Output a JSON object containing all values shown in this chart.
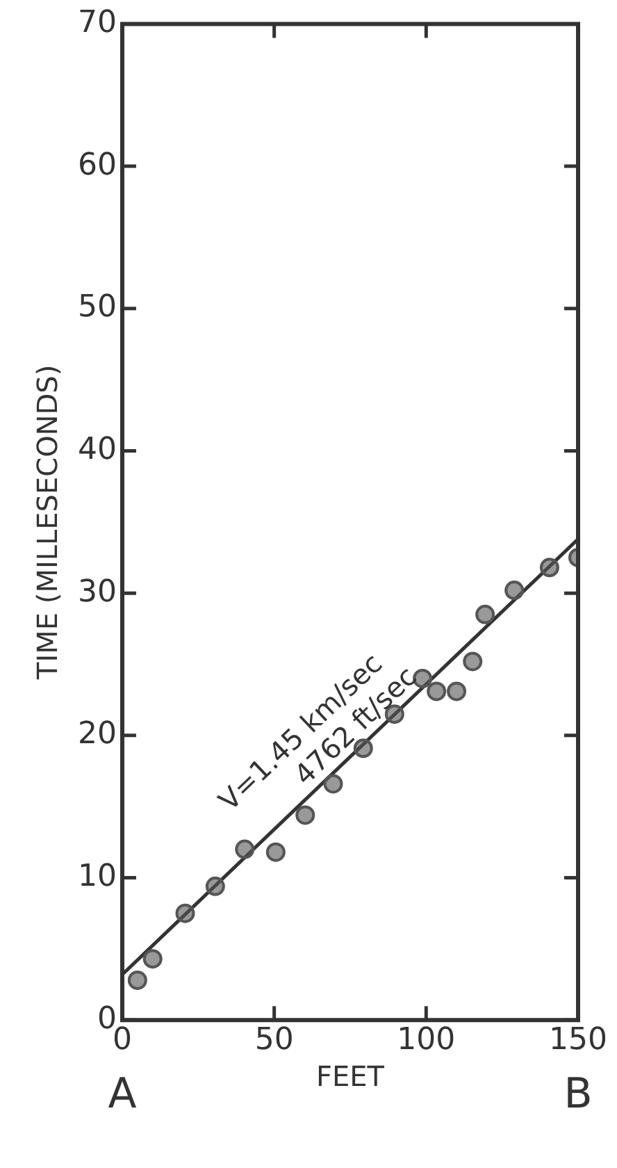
{
  "chart_data": {
    "type": "scatter",
    "xlabel": "FEET",
    "ylabel": "TIME (MILLESECONDS)",
    "xlim": [
      0,
      150
    ],
    "ylim": [
      0,
      70
    ],
    "xticks": [
      0,
      50,
      100,
      150
    ],
    "yticks": [
      0,
      10,
      20,
      30,
      40,
      50,
      60,
      70
    ],
    "grid": false,
    "legend": false,
    "series": [
      {
        "marker": "circle",
        "color": "#555555",
        "x": [
          5,
          10,
          20.7,
          30.6,
          40.3,
          50.5,
          60.2,
          69.4,
          79.3,
          89.6,
          98.8,
          103.4,
          110,
          115.3,
          119.4,
          129,
          140.6,
          150
        ],
        "values": [
          2.8,
          4.3,
          7.5,
          9.4,
          12.0,
          11.8,
          14.4,
          16.6,
          19.1,
          21.5,
          24.0,
          23.1,
          23.1,
          25.2,
          28.5,
          30.2,
          31.8,
          32.5
        ]
      },
      {
        "type": "line",
        "color": "#333333",
        "line_style": "solid",
        "x": [
          0,
          150
        ],
        "values": [
          3.2,
          33.8
        ]
      }
    ],
    "annotations": [
      "V=1.45 km/sec",
      "4762 ft/sec",
      "A",
      "B"
    ]
  }
}
